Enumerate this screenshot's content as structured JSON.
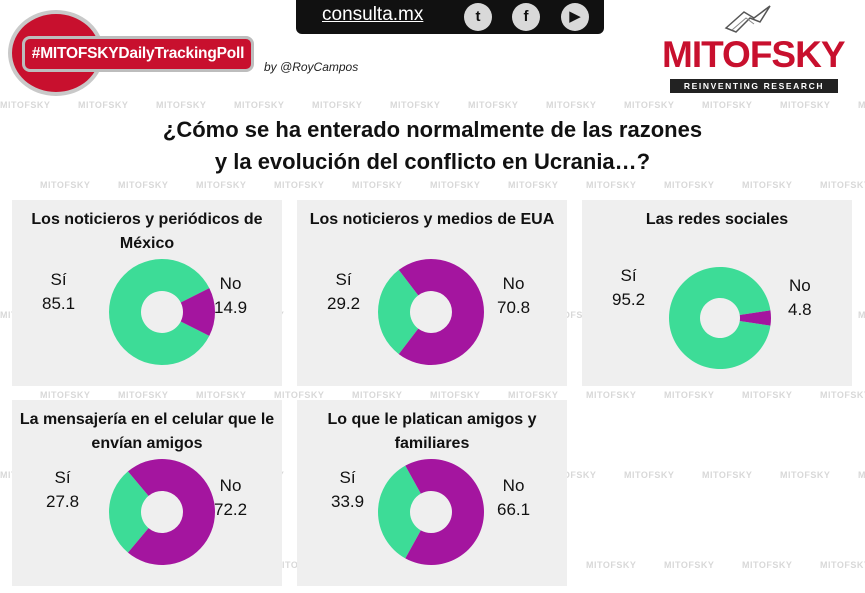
{
  "header": {
    "hashtag": "#MITOFSKYDailyTrackingPoll",
    "byline": "by @RoyCampos",
    "site": "consulta.mx",
    "social_icons": [
      "twitter-icon",
      "facebook-icon",
      "youtube-icon"
    ],
    "brand": "MITOFSKY",
    "tagline": "REINVENTING RESEARCH",
    "watermark": "MITOFSKY"
  },
  "colors": {
    "yes": "#3ddc97",
    "no": "#a4159f",
    "brand": "#c8102e",
    "panel": "#efefef"
  },
  "chart_data": {
    "type": "pie",
    "title": "¿Cómo se ha enterado normalmente de las razones y la evolución del conflicto en Ucrania…?",
    "title_line1": "¿Cómo se ha enterado normalmente de las razones",
    "title_line2": "y la evolución del conflicto en Ucrania…?",
    "categories": [
      "Sí",
      "No"
    ],
    "series": [
      {
        "name": "Los noticieros y periódicos de México",
        "name_lines": [
          "Los noticieros y periódicos de",
          "México"
        ],
        "yes": 85.1,
        "no": 14.9,
        "yes_label": "85.1",
        "no_label": "14.9"
      },
      {
        "name": "Los noticieros y medios de EUA",
        "name_lines": [
          "Los noticieros y medios de EUA"
        ],
        "yes": 29.2,
        "no": 70.8,
        "yes_label": "29.2",
        "no_label": "70.8"
      },
      {
        "name": "Las redes sociales",
        "name_lines": [
          "Las redes sociales"
        ],
        "yes": 95.2,
        "no": 4.8,
        "yes_label": "95.2",
        "no_label": "4.8"
      },
      {
        "name": "La mensajería en el celular que le envían amigos",
        "name_lines": [
          "La mensajería en el celular que le",
          "envían amigos"
        ],
        "yes": 27.8,
        "no": 72.2,
        "yes_label": "27.8",
        "no_label": "72.2"
      },
      {
        "name": "Lo que le platican amigos y familiares",
        "name_lines": [
          "Lo que le platican amigos y",
          "familiares"
        ],
        "yes": 33.9,
        "no": 66.1,
        "yes_label": "33.9",
        "no_label": "66.1"
      }
    ]
  }
}
